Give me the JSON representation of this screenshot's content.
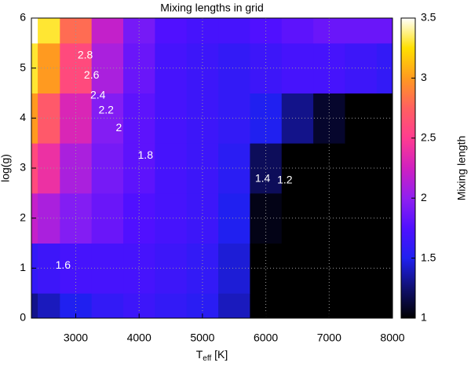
{
  "chart_data": {
    "type": "heatmap",
    "title": "Mixing lengths in grid",
    "xlabel": [
      "T",
      "eff",
      " [K]"
    ],
    "ylabel": "log(g)",
    "colorbar_label": "Mixing length",
    "x": [
      2300,
      2500,
      3000,
      3500,
      4000,
      4500,
      5000,
      5500,
      6000,
      6500,
      7000,
      7500,
      8000
    ],
    "y": [
      0,
      1,
      2,
      3,
      4,
      5,
      6
    ],
    "z": [
      [
        1.3,
        1.4,
        1.5,
        1.6,
        1.65,
        1.6,
        1.55,
        1.4,
        1.0,
        1.0,
        1.0,
        1.0,
        1.0
      ],
      [
        1.6,
        1.65,
        1.7,
        1.7,
        1.7,
        1.65,
        1.6,
        1.45,
        1.0,
        1.0,
        1.0,
        1.0,
        1.0
      ],
      [
        2.2,
        2.1,
        1.95,
        1.85,
        1.75,
        1.7,
        1.65,
        1.5,
        1.05,
        1.0,
        1.0,
        1.0,
        1.0
      ],
      [
        2.6,
        2.4,
        2.1,
        1.9,
        1.8,
        1.7,
        1.65,
        1.55,
        1.2,
        1.0,
        1.0,
        1.0,
        1.0
      ],
      [
        3.0,
        2.7,
        2.3,
        1.95,
        1.8,
        1.7,
        1.65,
        1.6,
        1.5,
        1.3,
        1.1,
        1.0,
        1.0
      ],
      [
        3.3,
        3.0,
        2.6,
        2.1,
        1.85,
        1.7,
        1.65,
        1.6,
        1.65,
        1.7,
        1.7,
        1.65,
        1.6
      ],
      [
        3.5,
        3.3,
        2.8,
        2.2,
        1.9,
        1.75,
        1.7,
        1.7,
        1.75,
        1.8,
        1.85,
        1.85,
        1.85
      ]
    ],
    "contour_labels": [
      2.8,
      2.6,
      2.4,
      2.2,
      2,
      1.8,
      1.6,
      1.4,
      1.2
    ],
    "xlim": [
      2300,
      8000
    ],
    "xticks": [
      3000,
      4000,
      5000,
      6000,
      7000,
      8000
    ],
    "ylim": [
      0,
      6
    ],
    "yticks": [
      0,
      1,
      2,
      3,
      4,
      5,
      6
    ],
    "clim": [
      1,
      3.5
    ],
    "cticks": [
      1,
      1.5,
      2,
      2.5,
      3,
      3.5
    ],
    "colormap": [
      "#000000",
      "#101070",
      "#2020f0",
      "#5010ff",
      "#9020f0",
      "#d020c0",
      "#ff3c90",
      "#ff6060",
      "#ff9a20",
      "#ffe000",
      "#ffffff"
    ],
    "grid": true
  }
}
